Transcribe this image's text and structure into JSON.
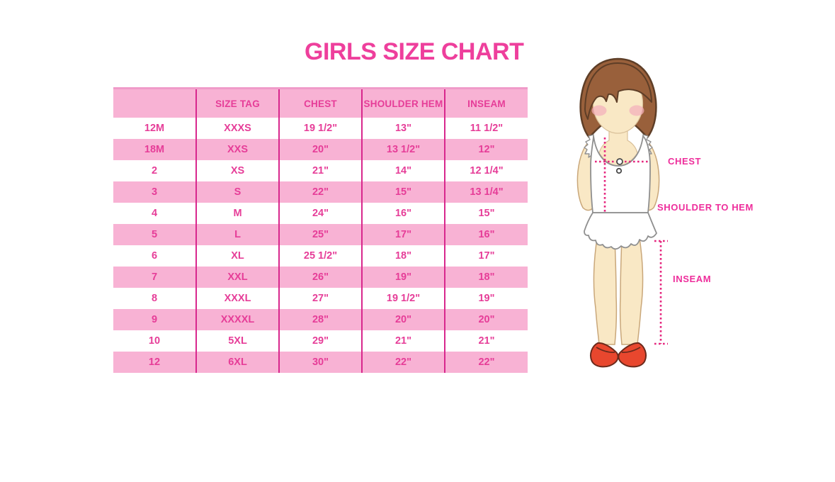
{
  "title": "GIRLS SIZE CHART",
  "chart_data": {
    "type": "table",
    "title": "GIRLS SIZE CHART",
    "columns": [
      "",
      "SIZE TAG",
      "CHEST",
      "SHOULDER HEM",
      "INSEAM"
    ],
    "rows": [
      [
        "12M",
        "XXXS",
        "19 1/2\"",
        "13\"",
        "11 1/2\""
      ],
      [
        "18M",
        "XXS",
        "20\"",
        "13 1/2\"",
        "12\""
      ],
      [
        "2",
        "XS",
        "21\"",
        "14\"",
        "12 1/4\""
      ],
      [
        "3",
        "S",
        "22\"",
        "15\"",
        "13 1/4\""
      ],
      [
        "4",
        "M",
        "24\"",
        "16\"",
        "15\""
      ],
      [
        "5",
        "L",
        "25\"",
        "17\"",
        "16\""
      ],
      [
        "6",
        "XL",
        "25 1/2\"",
        "18\"",
        "17\""
      ],
      [
        "7",
        "XXL",
        "26\"",
        "19\"",
        "18\""
      ],
      [
        "8",
        "XXXL",
        "27\"",
        "19 1/2\"",
        "19\""
      ],
      [
        "9",
        "XXXXL",
        "28\"",
        "20\"",
        "20\""
      ],
      [
        "10",
        "5XL",
        "29\"",
        "21\"",
        "21\""
      ],
      [
        "12",
        "6XL",
        "30\"",
        "22\"",
        "22\""
      ]
    ]
  },
  "figure": {
    "labels": {
      "chest": "CHEST",
      "shoulder_to_hem": "SHOULDER TO HEM",
      "inseam": "INSEAM"
    }
  },
  "colors": {
    "title_pink": "#EE3F9C",
    "row_pink": "#F8B2D4",
    "table_text_pink": "#E63D98",
    "divider_pink": "#D8278D",
    "label_pink": "#EE2D9B",
    "dotted_line_pink": "#E5267E",
    "hair_brown": "#99603B",
    "skin": "#F9E8C5",
    "shoe_red": "#E8472E"
  }
}
